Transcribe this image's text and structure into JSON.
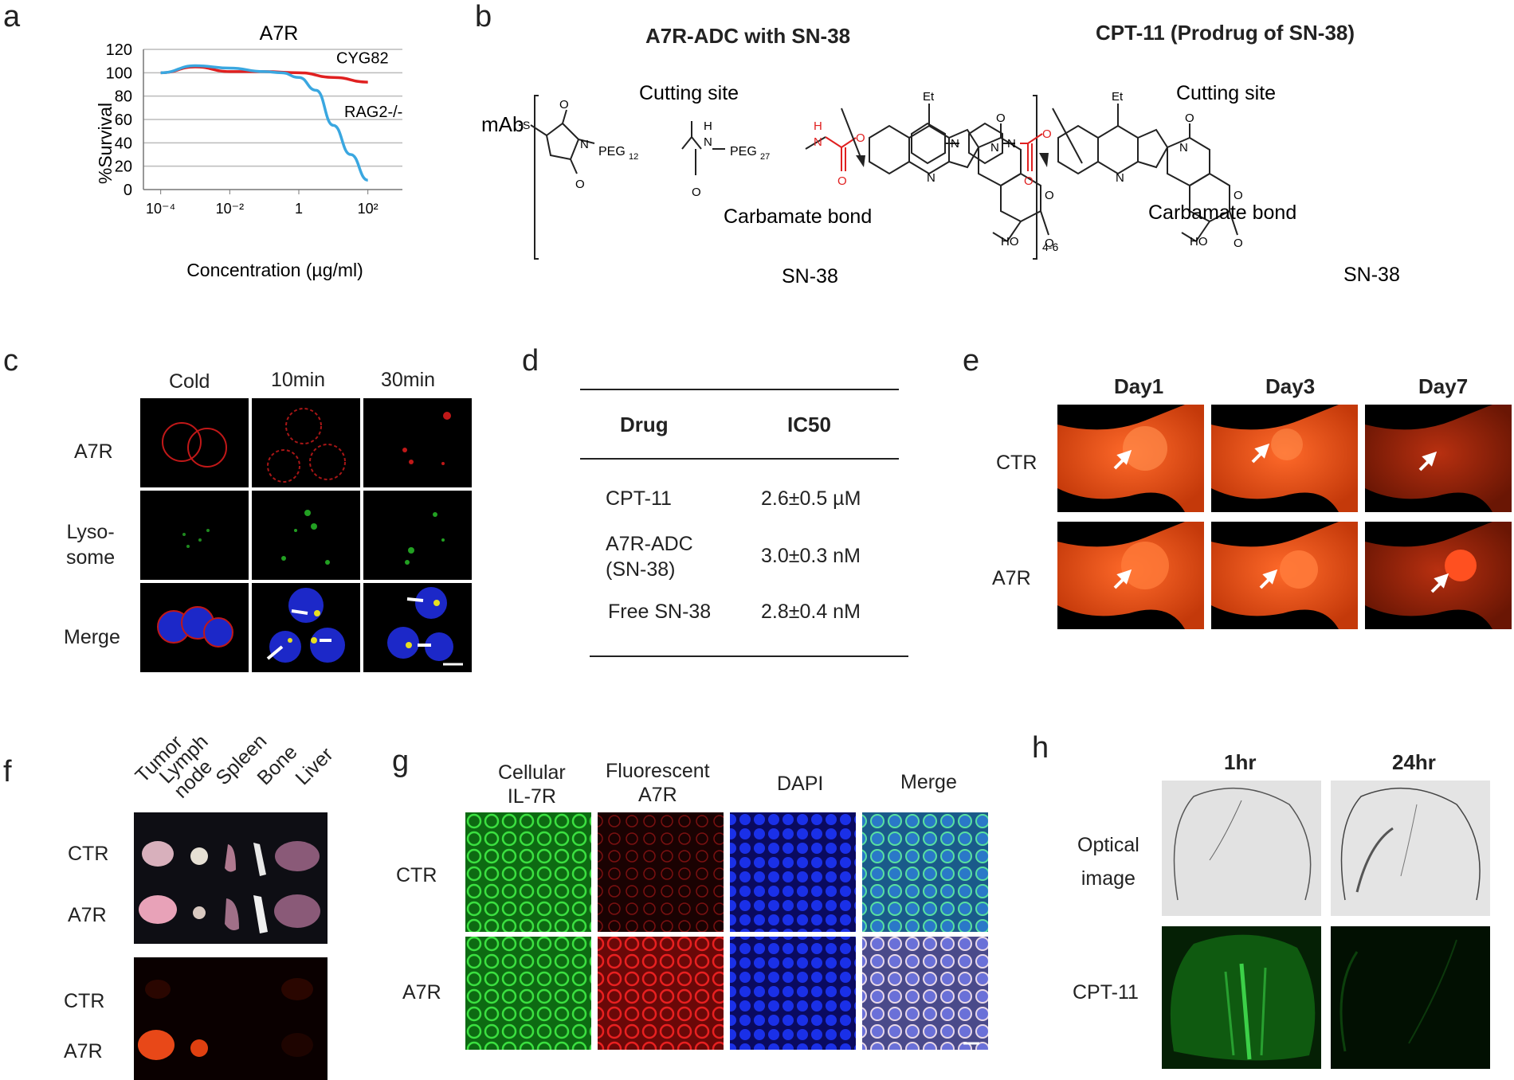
{
  "panels": {
    "a": {
      "label": "a",
      "chart_data": {
        "type": "line",
        "title": "A7R",
        "xlabel": "Concentration (µg/ml)",
        "ylabel": "%Survival",
        "x_scale": "log",
        "xticks": [
          "10⁻⁴",
          "10⁻²",
          "1",
          "10²"
        ],
        "xlim_log10": [
          -4.5,
          3
        ],
        "yticks": [
          0,
          20,
          40,
          60,
          80,
          100,
          120
        ],
        "ylim": [
          0,
          120
        ],
        "grid": true,
        "series": [
          {
            "name": "CYG82",
            "color": "#e02020",
            "x_log10": [
              -4,
              -3,
              -2,
              -1,
              0,
              1,
              2
            ],
            "y": [
              100,
              105,
              101,
              101,
              100,
              96,
              92
            ]
          },
          {
            "name": "RAG2-/-",
            "color": "#3aa7e0",
            "x_log10": [
              -4,
              -3,
              -2,
              -1,
              -0.5,
              0,
              0.5,
              1,
              1.5,
              2
            ],
            "y": [
              100,
              106,
              104,
              101,
              100,
              96,
              85,
              55,
              30,
              8
            ]
          }
        ]
      }
    },
    "b": {
      "label": "b",
      "left_title": "A7R-ADC  with SN-38",
      "right_title": "CPT-11 (Prodrug of SN-38)",
      "cutting_site": "Cutting site",
      "carbamate": "Carbamate  bond",
      "sn38": "SN-38",
      "mab": "mAb",
      "subscript_n": "4-6",
      "peg12": "PEG",
      "peg12_sub": "12",
      "peg27": "PEG",
      "peg27_sub": "27",
      "et": "Et",
      "ho": "HO",
      "atom_o": "O",
      "atom_n": "N",
      "atom_h": "H",
      "atom_s": "S"
    },
    "c": {
      "label": "c",
      "columns": [
        "Cold",
        "10min",
        "30min"
      ],
      "rows": [
        "A7R",
        "Lyso-\nsome",
        "Merge"
      ]
    },
    "d": {
      "label": "d",
      "headers": [
        "Drug",
        "IC50"
      ],
      "rows": [
        {
          "drug": "CPT-11",
          "ic50": "2.6±0.5 µM"
        },
        {
          "drug": "A7R-ADC\n(SN-38)",
          "ic50": "3.0±0.3 nM"
        },
        {
          "drug": "Free SN-38",
          "ic50": "2.8±0.4 nM"
        }
      ]
    },
    "e": {
      "label": "e",
      "columns": [
        "Day1",
        "Day3",
        "Day7"
      ],
      "rows": [
        "CTR",
        "A7R"
      ]
    },
    "f": {
      "label": "f",
      "organs": [
        "Tumor",
        "Lymph\nnode",
        "Spleen",
        "Bone",
        "Liver"
      ],
      "rows_top": [
        "CTR",
        "A7R"
      ],
      "rows_bottom": [
        "CTR",
        "A7R"
      ]
    },
    "g": {
      "label": "g",
      "columns": [
        "Cellular\nIL-7R",
        "Fluorescent\nA7R",
        "DAPI",
        "Merge"
      ],
      "rows": [
        "CTR",
        "A7R"
      ]
    },
    "h": {
      "label": "h",
      "columns": [
        "1hr",
        "24hr"
      ],
      "rows": [
        "Optical\nimage",
        "CPT-11"
      ]
    }
  },
  "colors": {
    "red": "#e02020",
    "blue": "#3aa7e0",
    "green_fluor": "#1fae2a",
    "red_fluor": "#d01818",
    "dapi": "#1428d8"
  }
}
